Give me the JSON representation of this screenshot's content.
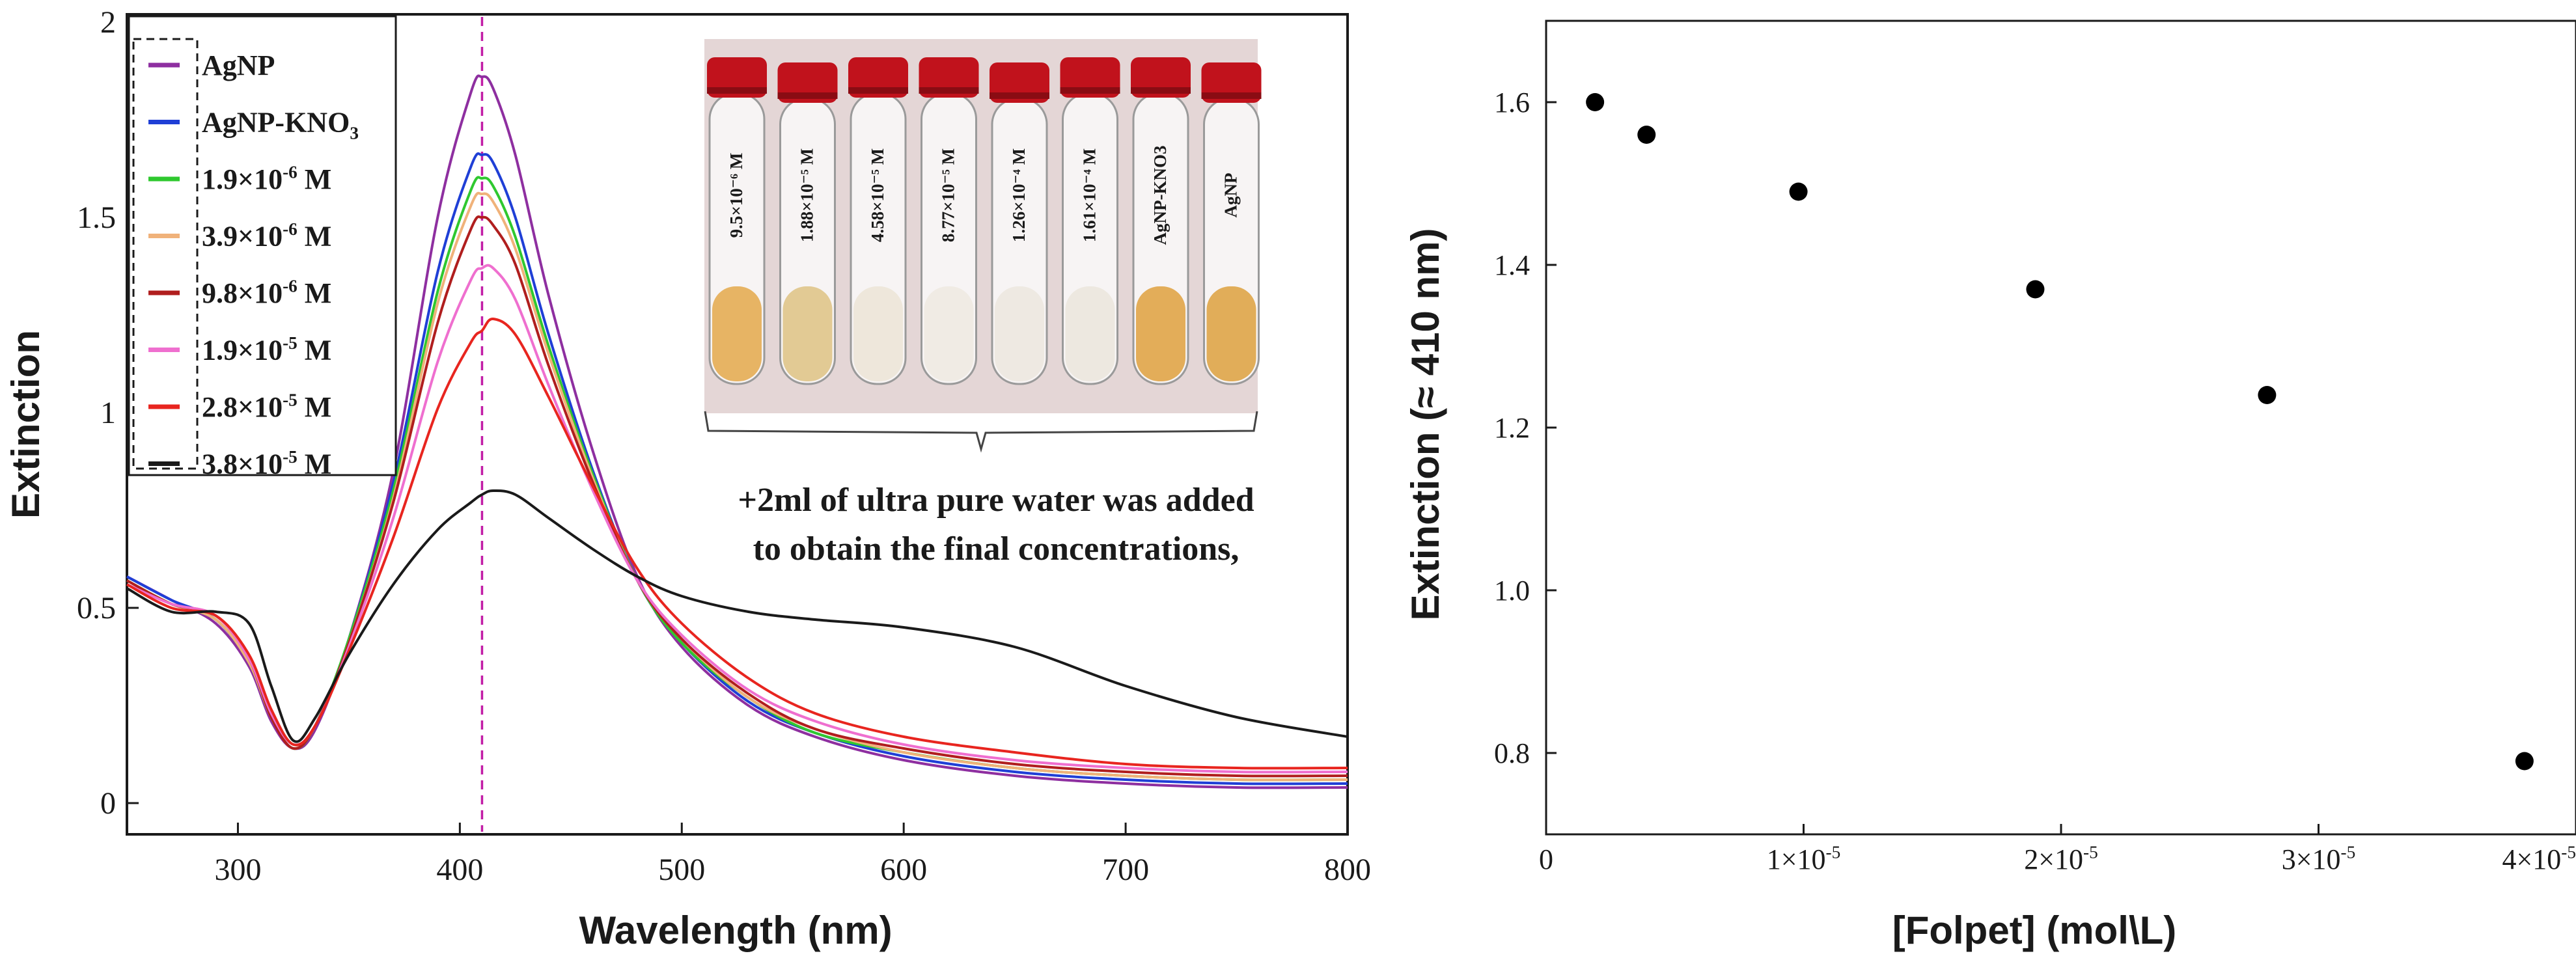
{
  "chart_data": [
    {
      "type": "line",
      "xlabel": "Wavelength (nm)",
      "ylabel": "Extinction",
      "xlim": [
        250,
        800
      ],
      "ylim": [
        -0.08,
        2.02
      ],
      "x_ticks": [
        "300",
        "400",
        "500",
        "600",
        "700",
        "800"
      ],
      "y_ticks": [
        "0",
        "0.5",
        "1",
        "1.5",
        "2"
      ],
      "reference_line_x": 410,
      "x": [
        250,
        270,
        290,
        305,
        315,
        325,
        335,
        350,
        370,
        390,
        405,
        410,
        415,
        425,
        440,
        460,
        480,
        500,
        530,
        560,
        600,
        650,
        700,
        750,
        800
      ],
      "series": [
        {
          "name": "AgNP",
          "sup": "",
          "color": "#8e2fa0",
          "values": [
            0.58,
            0.52,
            0.46,
            0.35,
            0.21,
            0.14,
            0.19,
            0.42,
            0.85,
            1.5,
            1.82,
            1.86,
            1.83,
            1.66,
            1.3,
            0.9,
            0.58,
            0.4,
            0.25,
            0.17,
            0.11,
            0.07,
            0.05,
            0.04,
            0.04
          ]
        },
        {
          "name": "AgNP-KNO",
          "sub": "3",
          "color": "#1f3fd6",
          "values": [
            0.58,
            0.52,
            0.47,
            0.36,
            0.22,
            0.14,
            0.2,
            0.42,
            0.82,
            1.36,
            1.63,
            1.66,
            1.64,
            1.5,
            1.2,
            0.85,
            0.57,
            0.41,
            0.26,
            0.18,
            0.12,
            0.08,
            0.06,
            0.05,
            0.05
          ]
        },
        {
          "name": "1.9×10",
          "sup": "-6",
          "suffix": " M",
          "color": "#2fc82f",
          "values": [
            0.57,
            0.51,
            0.47,
            0.36,
            0.22,
            0.14,
            0.2,
            0.42,
            0.8,
            1.31,
            1.57,
            1.6,
            1.58,
            1.45,
            1.17,
            0.84,
            0.57,
            0.41,
            0.27,
            0.18,
            0.13,
            0.09,
            0.07,
            0.06,
            0.06
          ]
        },
        {
          "name": "3.9×10",
          "sup": "-6",
          "suffix": " M",
          "color": "#f0b27a",
          "values": [
            0.57,
            0.51,
            0.47,
            0.36,
            0.22,
            0.14,
            0.2,
            0.41,
            0.78,
            1.28,
            1.53,
            1.56,
            1.54,
            1.42,
            1.15,
            0.83,
            0.57,
            0.42,
            0.27,
            0.19,
            0.13,
            0.09,
            0.07,
            0.06,
            0.06
          ]
        },
        {
          "name": "9.8×10",
          "sup": "-6",
          "suffix": " M",
          "color": "#b01e1e",
          "values": [
            0.57,
            0.51,
            0.48,
            0.37,
            0.22,
            0.14,
            0.2,
            0.41,
            0.77,
            1.23,
            1.47,
            1.5,
            1.48,
            1.38,
            1.12,
            0.82,
            0.57,
            0.42,
            0.28,
            0.19,
            0.14,
            0.1,
            0.08,
            0.07,
            0.07
          ]
        },
        {
          "name": "1.9×10",
          "sup": "-5",
          "suffix": " M",
          "color": "#ef6fcf",
          "values": [
            0.56,
            0.51,
            0.48,
            0.37,
            0.23,
            0.15,
            0.2,
            0.4,
            0.73,
            1.13,
            1.34,
            1.37,
            1.37,
            1.29,
            1.07,
            0.8,
            0.57,
            0.43,
            0.29,
            0.21,
            0.15,
            0.11,
            0.09,
            0.08,
            0.08
          ]
        },
        {
          "name": "2.8×10",
          "sup": "-5",
          "suffix": " M",
          "color": "#e8251f",
          "values": [
            0.56,
            0.5,
            0.48,
            0.38,
            0.24,
            0.15,
            0.2,
            0.39,
            0.68,
            1.01,
            1.18,
            1.21,
            1.24,
            1.2,
            1.04,
            0.81,
            0.6,
            0.46,
            0.32,
            0.23,
            0.17,
            0.13,
            0.1,
            0.09,
            0.09
          ]
        },
        {
          "name": "3.8×10",
          "sup": "-5",
          "suffix": " M",
          "color": "#1a1a1a",
          "values": [
            0.55,
            0.49,
            0.49,
            0.46,
            0.3,
            0.16,
            0.22,
            0.38,
            0.56,
            0.7,
            0.77,
            0.79,
            0.8,
            0.79,
            0.73,
            0.65,
            0.58,
            0.53,
            0.49,
            0.47,
            0.45,
            0.4,
            0.3,
            0.22,
            0.17
          ]
        }
      ],
      "inset": {
        "tube_labels": [
          "9.5×10⁻⁶ M",
          "1.88×10⁻⁵ M",
          "4.58×10⁻⁵ M",
          "8.77×10⁻⁵ M",
          "1.26×10⁻⁴ M",
          "1.61×10⁻⁴ M",
          "AgNP-KNO3",
          "AgNP"
        ],
        "tube_liquid_colors": [
          "#e4ad54",
          "#dfc58a",
          "#ece6d8",
          "#eeeae2",
          "#ece8e0",
          "#ebe7de",
          "#e0a548",
          "#dea548"
        ],
        "cap_color": "#c1121c",
        "annotation_line1": "+2ml of ultra pure water was added",
        "annotation_line2": "to obtain the final concentrations,"
      }
    },
    {
      "type": "scatter",
      "xlabel": "[Folpet] (mol\\L)",
      "ylabel": "Extinction (≈ 410 nm)",
      "xlim": [
        0,
        4e-05
      ],
      "ylim": [
        0.7,
        1.7
      ],
      "x_ticks": [
        {
          "mant": "0",
          "exp": ""
        },
        {
          "mant": "1×10",
          "exp": "-5"
        },
        {
          "mant": "2×10",
          "exp": "-5"
        },
        {
          "mant": "3×10",
          "exp": "-5"
        },
        {
          "mant": "4×10",
          "exp": "-5"
        }
      ],
      "y_ticks": [
        "0.8",
        "1.0",
        "1.2",
        "1.4",
        "1.6"
      ],
      "x": [
        1.9e-06,
        3.9e-06,
        9.8e-06,
        1.9e-05,
        2.8e-05,
        3.8e-05
      ],
      "y": [
        1.6,
        1.56,
        1.49,
        1.37,
        1.24,
        0.79
      ]
    }
  ]
}
